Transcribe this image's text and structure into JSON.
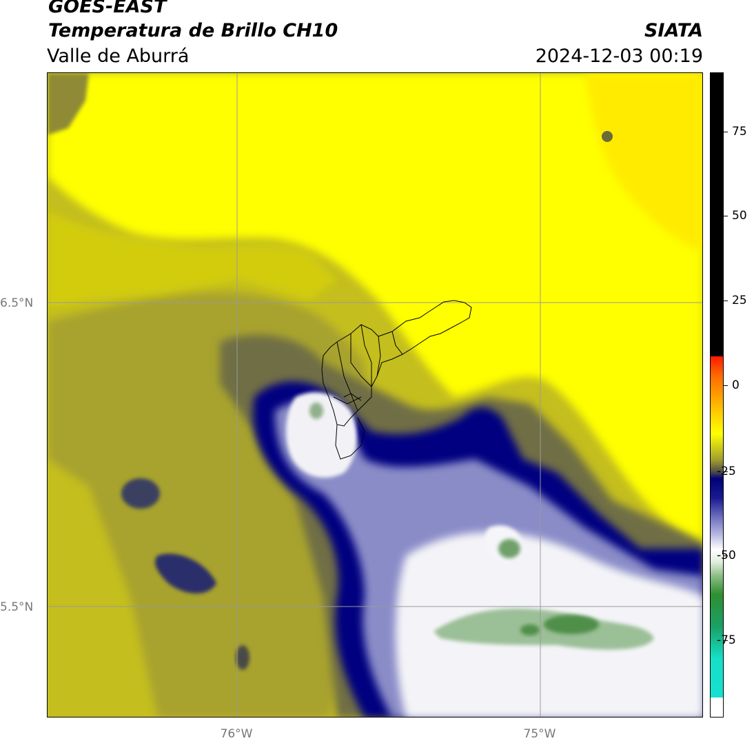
{
  "header": {
    "agency": "GOES-EAST",
    "product": "Temperatura de Brillo CH10",
    "region": "Valle de Aburrá",
    "org": "SIATA",
    "timestamp": "2024-12-03 00:19"
  },
  "map": {
    "latitude_labels": [
      "6.5°N",
      "5.5°N"
    ],
    "longitude_labels": [
      "76°W",
      "75°W"
    ],
    "gridlines": true,
    "feature": "Valle de Aburrá municipal boundaries"
  },
  "colorbar": {
    "tick_labels": [
      "75",
      "50",
      "25",
      "0",
      "-25",
      "-50",
      "-75"
    ],
    "colors": {
      "black": "#000000",
      "red": "#ff1a00",
      "orange": "#ff8c00",
      "yellow": "#ffff00",
      "olive": "#a3a12d",
      "navy": "#00007a",
      "white": "#ffffff",
      "green": "#2f8f2f",
      "cyan": "#16e0c8"
    }
  }
}
